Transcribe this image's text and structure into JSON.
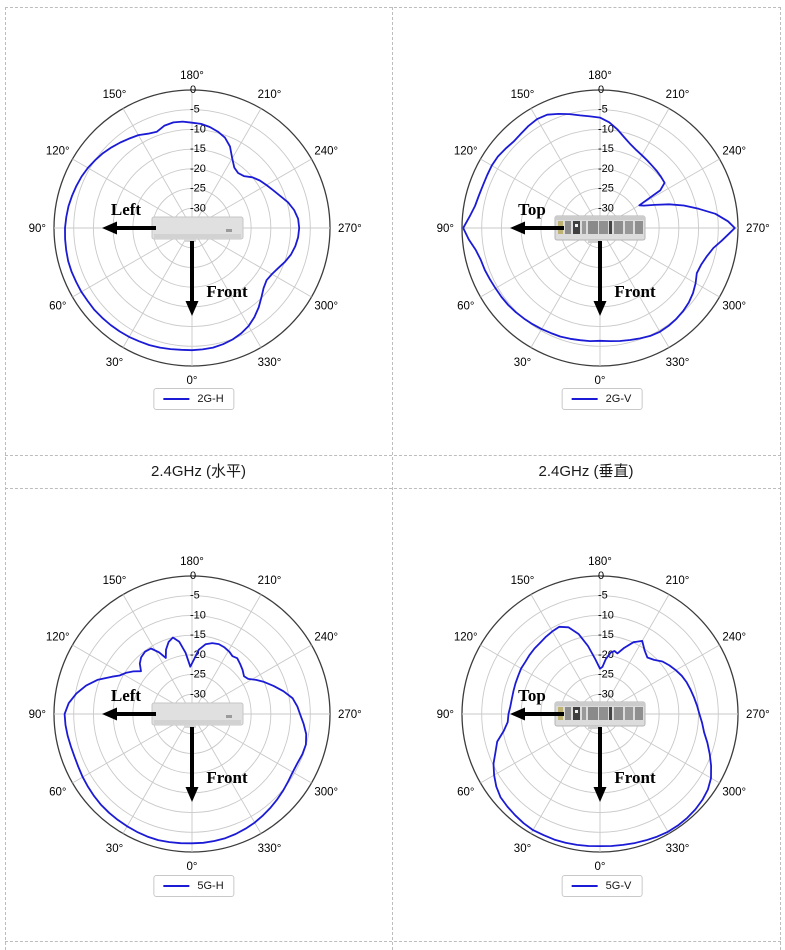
{
  "table": {
    "border_color": "#bdbdbd",
    "caption_row": {
      "left": "2.4GHz (水平)",
      "right": "2.4GHz (垂直)"
    }
  },
  "polar_axes": {
    "theta_ticks": [
      {
        "angle": 0,
        "label": "0°"
      },
      {
        "angle": 30,
        "label": "30°"
      },
      {
        "angle": 60,
        "label": "60°"
      },
      {
        "angle": 90,
        "label": "90°"
      },
      {
        "angle": 120,
        "label": "120°"
      },
      {
        "angle": 150,
        "label": "150°"
      },
      {
        "angle": 180,
        "label": "180°"
      },
      {
        "angle": 210,
        "label": "210°"
      },
      {
        "angle": 240,
        "label": "240°"
      },
      {
        "angle": 270,
        "label": "270°"
      },
      {
        "angle": 300,
        "label": "300°"
      },
      {
        "angle": 330,
        "label": "330°"
      }
    ],
    "r_ticks": [
      {
        "db": 0,
        "label": "0"
      },
      {
        "db": -5,
        "label": "-5"
      },
      {
        "db": -10,
        "label": "-10"
      },
      {
        "db": -15,
        "label": "-15"
      },
      {
        "db": -20,
        "label": "-20"
      },
      {
        "db": -25,
        "label": "-25"
      },
      {
        "db": -30,
        "label": "-30"
      }
    ],
    "r_min": -35,
    "grid_color": "#c9c9c9",
    "outer_circle_color": "#3c3c3c",
    "label_color": "#000000"
  },
  "chart_data": [
    {
      "type": "line",
      "polar": true,
      "name": "2G-H",
      "legend": "2G-H",
      "side_arrow_label": "Left",
      "front_arrow_label": "Front",
      "device_view": "side",
      "line_color": "#1b1bd6",
      "r_range": [
        -35,
        0
      ],
      "theta_zero": "bottom",
      "theta_direction": "ccw",
      "points": [
        [
          0,
          -4.0
        ],
        [
          5,
          -4.0
        ],
        [
          10,
          -3.8
        ],
        [
          15,
          -3.6
        ],
        [
          20,
          -3.4
        ],
        [
          25,
          -3.3
        ],
        [
          30,
          -3.1
        ],
        [
          35,
          -3.0
        ],
        [
          40,
          -2.9
        ],
        [
          45,
          -2.8
        ],
        [
          50,
          -2.7
        ],
        [
          55,
          -2.7
        ],
        [
          60,
          -2.6
        ],
        [
          65,
          -2.6
        ],
        [
          70,
          -2.5
        ],
        [
          75,
          -2.5
        ],
        [
          80,
          -2.6
        ],
        [
          85,
          -2.7
        ],
        [
          90,
          -2.8
        ],
        [
          95,
          -3.0
        ],
        [
          100,
          -3.2
        ],
        [
          105,
          -3.5
        ],
        [
          110,
          -3.8
        ],
        [
          115,
          -4.1
        ],
        [
          120,
          -4.5
        ],
        [
          125,
          -5.0
        ],
        [
          130,
          -5.5
        ],
        [
          135,
          -6.1
        ],
        [
          140,
          -6.7
        ],
        [
          145,
          -7.3
        ],
        [
          150,
          -7.8
        ],
        [
          155,
          -8.6
        ],
        [
          160,
          -9.0
        ],
        [
          165,
          -8.1
        ],
        [
          170,
          -7.8
        ],
        [
          175,
          -7.9
        ],
        [
          180,
          -8.3
        ],
        [
          185,
          -8.5
        ],
        [
          190,
          -9.0
        ],
        [
          195,
          -9.7
        ],
        [
          200,
          -10.6
        ],
        [
          205,
          -12.2
        ],
        [
          210,
          -14.6
        ],
        [
          215,
          -16.3
        ],
        [
          220,
          -16.8
        ],
        [
          225,
          -16.4
        ],
        [
          230,
          -15.0
        ],
        [
          235,
          -14.0
        ],
        [
          240,
          -13.2
        ],
        [
          245,
          -12.3
        ],
        [
          250,
          -11.2
        ],
        [
          255,
          -9.8
        ],
        [
          260,
          -8.7
        ],
        [
          265,
          -8.0
        ],
        [
          270,
          -7.8
        ],
        [
          275,
          -8.0
        ],
        [
          280,
          -8.4
        ],
        [
          285,
          -9.0
        ],
        [
          290,
          -9.9
        ],
        [
          295,
          -10.9
        ],
        [
          300,
          -11.6
        ],
        [
          305,
          -11.9
        ],
        [
          310,
          -11.3
        ],
        [
          315,
          -10.1
        ],
        [
          320,
          -8.7
        ],
        [
          325,
          -7.4
        ],
        [
          330,
          -6.3
        ],
        [
          335,
          -5.5
        ],
        [
          340,
          -4.9
        ],
        [
          345,
          -4.5
        ],
        [
          350,
          -4.2
        ],
        [
          355,
          -4.1
        ]
      ]
    },
    {
      "type": "line",
      "polar": true,
      "name": "2G-V",
      "legend": "2G-V",
      "side_arrow_label": "Top",
      "front_arrow_label": "Front",
      "device_view": "rear",
      "line_color": "#1b1bd6",
      "r_range": [
        -35,
        0
      ],
      "theta_zero": "bottom",
      "theta_direction": "ccw",
      "points": [
        [
          0,
          -6.4
        ],
        [
          5,
          -6.2
        ],
        [
          10,
          -6.1
        ],
        [
          15,
          -5.9
        ],
        [
          20,
          -5.7
        ],
        [
          25,
          -5.6
        ],
        [
          30,
          -5.4
        ],
        [
          35,
          -5.2
        ],
        [
          40,
          -5.0
        ],
        [
          45,
          -4.8
        ],
        [
          50,
          -4.6
        ],
        [
          55,
          -4.5
        ],
        [
          60,
          -4.4
        ],
        [
          65,
          -4.2
        ],
        [
          70,
          -3.9
        ],
        [
          75,
          -3.7
        ],
        [
          80,
          -3.0
        ],
        [
          85,
          -1.6
        ],
        [
          90,
          -0.3
        ],
        [
          95,
          -1.8
        ],
        [
          100,
          -2.8
        ],
        [
          105,
          -3.2
        ],
        [
          110,
          -3.4
        ],
        [
          115,
          -3.4
        ],
        [
          120,
          -3.3
        ],
        [
          125,
          -3.4
        ],
        [
          130,
          -3.7
        ],
        [
          135,
          -4.0
        ],
        [
          140,
          -3.8
        ],
        [
          145,
          -3.4
        ],
        [
          150,
          -3.1
        ],
        [
          155,
          -3.3
        ],
        [
          160,
          -4.2
        ],
        [
          165,
          -5.1
        ],
        [
          170,
          -6.0
        ],
        [
          175,
          -6.6
        ],
        [
          180,
          -7.0
        ],
        [
          185,
          -8.1
        ],
        [
          190,
          -9.6
        ],
        [
          195,
          -11.2
        ],
        [
          200,
          -12.4
        ],
        [
          205,
          -13.2
        ],
        [
          210,
          -13.7
        ],
        [
          215,
          -14.1
        ],
        [
          220,
          -14.4
        ],
        [
          225,
          -14.6
        ],
        [
          230,
          -14.8
        ],
        [
          235,
          -15.0
        ],
        [
          238,
          -17.0
        ],
        [
          240,
          -23.5
        ],
        [
          243,
          -22.5
        ],
        [
          247,
          -20.0
        ],
        [
          251,
          -16.5
        ],
        [
          255,
          -13.0
        ],
        [
          259,
          -9.5
        ],
        [
          263,
          -5.5
        ],
        [
          267,
          -2.5
        ],
        [
          270,
          -0.8
        ],
        [
          273,
          -2.5
        ],
        [
          276,
          -4.0
        ],
        [
          280,
          -5.8
        ],
        [
          285,
          -7.0
        ],
        [
          290,
          -7.7
        ],
        [
          295,
          -7.9
        ],
        [
          300,
          -7.0
        ],
        [
          305,
          -6.2
        ],
        [
          310,
          -5.6
        ],
        [
          315,
          -5.2
        ],
        [
          320,
          -4.9
        ],
        [
          325,
          -4.7
        ],
        [
          330,
          -4.6
        ],
        [
          335,
          -4.8
        ],
        [
          340,
          -5.2
        ],
        [
          345,
          -5.6
        ],
        [
          350,
          -5.9
        ],
        [
          355,
          -6.2
        ]
      ]
    },
    {
      "type": "line",
      "polar": true,
      "name": "5G-H",
      "legend": "5G-H",
      "side_arrow_label": "Left",
      "front_arrow_label": "Front",
      "device_view": "side",
      "line_color": "#1b1bd6",
      "r_range": [
        -35,
        0
      ],
      "theta_zero": "bottom",
      "theta_direction": "ccw",
      "points": [
        [
          0,
          -2.2
        ],
        [
          5,
          -2.1
        ],
        [
          10,
          -2.0
        ],
        [
          15,
          -1.9
        ],
        [
          20,
          -1.9
        ],
        [
          25,
          -2.0
        ],
        [
          30,
          -2.1
        ],
        [
          35,
          -2.2
        ],
        [
          40,
          -2.3
        ],
        [
          45,
          -2.4
        ],
        [
          50,
          -2.6
        ],
        [
          55,
          -2.8
        ],
        [
          60,
          -3.0
        ],
        [
          65,
          -3.2
        ],
        [
          70,
          -3.3
        ],
        [
          75,
          -3.2
        ],
        [
          80,
          -3.0
        ],
        [
          85,
          -2.8
        ],
        [
          90,
          -2.7
        ],
        [
          95,
          -3.6
        ],
        [
          100,
          -5.2
        ],
        [
          105,
          -7.2
        ],
        [
          110,
          -9.6
        ],
        [
          115,
          -12.6
        ],
        [
          118,
          -14.2
        ],
        [
          122,
          -15.3
        ],
        [
          126,
          -16.6
        ],
        [
          130,
          -18.1
        ],
        [
          134,
          -16.6
        ],
        [
          138,
          -15.7
        ],
        [
          143,
          -15.2
        ],
        [
          148,
          -15.4
        ],
        [
          152,
          -17.3
        ],
        [
          155,
          -19.3
        ],
        [
          158,
          -17.4
        ],
        [
          162,
          -15.8
        ],
        [
          166,
          -15.0
        ],
        [
          170,
          -16.4
        ],
        [
          174,
          -19.4
        ],
        [
          178,
          -23.0
        ],
        [
          182,
          -21.2
        ],
        [
          186,
          -18.6
        ],
        [
          191,
          -17.0
        ],
        [
          196,
          -16.3
        ],
        [
          201,
          -16.0
        ],
        [
          206,
          -16.2
        ],
        [
          211,
          -16.6
        ],
        [
          215,
          -17.1
        ],
        [
          219,
          -16.8
        ],
        [
          224,
          -17.4
        ],
        [
          229,
          -18.0
        ],
        [
          234,
          -18.7
        ],
        [
          238,
          -18.2
        ],
        [
          242,
          -16.6
        ],
        [
          246,
          -15.0
        ],
        [
          251,
          -13.1
        ],
        [
          256,
          -11.1
        ],
        [
          261,
          -9.2
        ],
        [
          266,
          -8.2
        ],
        [
          270,
          -7.6
        ],
        [
          275,
          -6.6
        ],
        [
          280,
          -5.6
        ],
        [
          285,
          -5.1
        ],
        [
          290,
          -5.2
        ],
        [
          295,
          -5.5
        ],
        [
          300,
          -5.5
        ],
        [
          305,
          -5.2
        ],
        [
          310,
          -4.8
        ],
        [
          315,
          -4.4
        ],
        [
          320,
          -4.0
        ],
        [
          325,
          -3.6
        ],
        [
          330,
          -3.2
        ],
        [
          335,
          -2.9
        ],
        [
          340,
          -2.6
        ],
        [
          345,
          -2.4
        ],
        [
          350,
          -2.3
        ],
        [
          355,
          -2.2
        ]
      ]
    },
    {
      "type": "line",
      "polar": true,
      "name": "5G-V",
      "legend": "5G-V",
      "side_arrow_label": "Top",
      "front_arrow_label": "Front",
      "device_view": "rear",
      "line_color": "#1b1bd6",
      "r_range": [
        -35,
        0
      ],
      "theta_zero": "bottom",
      "theta_direction": "ccw",
      "points": [
        [
          0,
          -1.5
        ],
        [
          5,
          -1.4
        ],
        [
          10,
          -1.3
        ],
        [
          15,
          -1.2
        ],
        [
          20,
          -1.1
        ],
        [
          25,
          -1.1
        ],
        [
          30,
          -1.0
        ],
        [
          35,
          -1.2
        ],
        [
          40,
          -1.5
        ],
        [
          45,
          -1.8
        ],
        [
          50,
          -2.1
        ],
        [
          55,
          -2.9
        ],
        [
          60,
          -4.0
        ],
        [
          65,
          -5.2
        ],
        [
          70,
          -6.8
        ],
        [
          75,
          -8.0
        ],
        [
          80,
          -10.2
        ],
        [
          85,
          -11.5
        ],
        [
          90,
          -11.8
        ],
        [
          95,
          -12.2
        ],
        [
          100,
          -12.3
        ],
        [
          105,
          -12.3
        ],
        [
          110,
          -12.2
        ],
        [
          115,
          -12.1
        ],
        [
          120,
          -11.9
        ],
        [
          125,
          -11.9
        ],
        [
          130,
          -11.7
        ],
        [
          135,
          -11.5
        ],
        [
          140,
          -11.4
        ],
        [
          145,
          -11.1
        ],
        [
          150,
          -10.8
        ],
        [
          155,
          -10.6
        ],
        [
          160,
          -11.6
        ],
        [
          165,
          -14.0
        ],
        [
          170,
          -17.5
        ],
        [
          175,
          -21.0
        ],
        [
          180,
          -23.5
        ],
        [
          183,
          -23.0
        ],
        [
          186,
          -21.0
        ],
        [
          190,
          -19.2
        ],
        [
          193,
          -18.6
        ],
        [
          196,
          -19.0
        ],
        [
          200,
          -17.2
        ],
        [
          205,
          -14.9
        ],
        [
          210,
          -13.6
        ],
        [
          215,
          -15.3
        ],
        [
          220,
          -16.3
        ],
        [
          225,
          -15.6
        ],
        [
          230,
          -14.3
        ],
        [
          235,
          -13.5
        ],
        [
          240,
          -12.8
        ],
        [
          245,
          -12.1
        ],
        [
          250,
          -11.6
        ],
        [
          255,
          -11.2
        ],
        [
          260,
          -10.8
        ],
        [
          265,
          -10.3
        ],
        [
          270,
          -9.8
        ],
        [
          275,
          -9.0
        ],
        [
          280,
          -8.2
        ],
        [
          285,
          -6.8
        ],
        [
          290,
          -5.4
        ],
        [
          295,
          -3.9
        ],
        [
          300,
          -2.5
        ],
        [
          305,
          -1.6
        ],
        [
          310,
          -1.1
        ],
        [
          315,
          -0.8
        ],
        [
          320,
          -0.6
        ],
        [
          325,
          -0.5
        ],
        [
          330,
          -0.5
        ],
        [
          335,
          -0.7
        ],
        [
          340,
          -0.9
        ],
        [
          345,
          -1.1
        ],
        [
          350,
          -1.3
        ],
        [
          355,
          -1.4
        ]
      ]
    }
  ]
}
